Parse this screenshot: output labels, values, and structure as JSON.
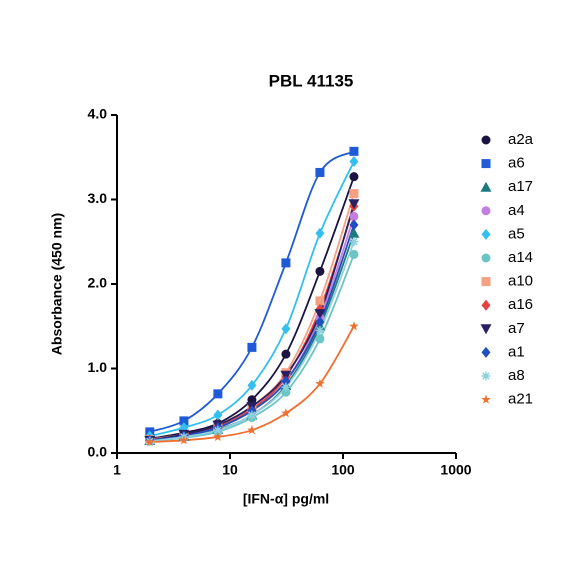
{
  "chart_data": {
    "type": "scatter",
    "title": "PBL 41135",
    "x_label": "[IFN-α] pg/ml",
    "y_label": "Absorbance (450 nm)",
    "x_scale": "log",
    "xlim": [
      1,
      1000
    ],
    "xticks": [
      1,
      10,
      100,
      1000
    ],
    "ylim": [
      0,
      4
    ],
    "yticks": [
      {
        "value": 0,
        "label": "0.0"
      },
      {
        "value": 1,
        "label": "1.0"
      },
      {
        "value": 2,
        "label": "2.0"
      },
      {
        "value": 3,
        "label": "3.0"
      },
      {
        "value": 4,
        "label": "4.0"
      }
    ],
    "legend": "right",
    "x": [
      1.95,
      3.91,
      7.81,
      15.63,
      31.25,
      62.5,
      125
    ],
    "series": [
      {
        "name": "a2a",
        "color": "#1b1340",
        "marker": "circle",
        "values": [
          0.17,
          0.24,
          0.35,
          0.63,
          1.17,
          2.15,
          3.27
        ]
      },
      {
        "name": "a6",
        "color": "#1f5bd6",
        "marker": "square",
        "values": [
          0.25,
          0.38,
          0.7,
          1.25,
          2.25,
          3.32,
          3.57
        ]
      },
      {
        "name": "a17",
        "color": "#1f7a80",
        "marker": "triangle",
        "values": [
          0.15,
          0.2,
          0.28,
          0.45,
          0.8,
          1.5,
          2.6
        ]
      },
      {
        "name": "a4",
        "color": "#c27fe0",
        "marker": "circle",
        "values": [
          0.15,
          0.2,
          0.3,
          0.5,
          0.85,
          1.6,
          2.8
        ]
      },
      {
        "name": "a5",
        "color": "#33c0f0",
        "marker": "diamond",
        "values": [
          0.2,
          0.3,
          0.45,
          0.8,
          1.47,
          2.6,
          3.45
        ]
      },
      {
        "name": "a14",
        "color": "#6cc5c5",
        "marker": "circle",
        "values": [
          0.14,
          0.18,
          0.25,
          0.42,
          0.72,
          1.35,
          2.35
        ]
      },
      {
        "name": "a10",
        "color": "#f5a080",
        "marker": "square",
        "values": [
          0.16,
          0.22,
          0.32,
          0.55,
          0.95,
          1.8,
          3.07
        ]
      },
      {
        "name": "a16",
        "color": "#e84040",
        "marker": "diamond",
        "values": [
          0.15,
          0.21,
          0.31,
          0.52,
          0.9,
          1.7,
          2.92
        ]
      },
      {
        "name": "a7",
        "color": "#2a1f60",
        "marker": "triangle-down",
        "values": [
          0.15,
          0.22,
          0.33,
          0.55,
          0.92,
          1.65,
          2.95
        ]
      },
      {
        "name": "a1",
        "color": "#1f50c0",
        "marker": "diamond",
        "values": [
          0.15,
          0.2,
          0.3,
          0.5,
          0.85,
          1.55,
          2.7
        ]
      },
      {
        "name": "a8",
        "color": "#90d0e0",
        "marker": "asterisk",
        "values": [
          0.14,
          0.19,
          0.27,
          0.45,
          0.78,
          1.45,
          2.5
        ]
      },
      {
        "name": "a21",
        "color": "#f07030",
        "marker": "star",
        "values": [
          0.13,
          0.15,
          0.19,
          0.27,
          0.47,
          0.82,
          1.5
        ]
      }
    ]
  }
}
